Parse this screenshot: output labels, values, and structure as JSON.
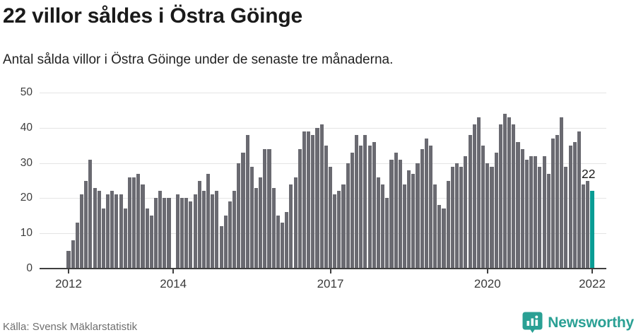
{
  "header": {
    "title": "22 villor såldes i Östra Göinge",
    "subtitle": "Antal sålda villor i Östra Göinge under de senaste tre månaderna."
  },
  "footer": {
    "source": "Källa: Svensk Mäklarstatistik",
    "brand": "Newsworthy",
    "brand_icon": "newsworthy-pin-barchart-icon"
  },
  "colors": {
    "bar": "#6a6a71",
    "highlight": "#089c94",
    "grid": "#e4e4e4",
    "axis": "#3f3f3f",
    "title_text": "#1a1a1a",
    "muted_text": "#6f6f6f",
    "brand_teal": "#2aa094"
  },
  "chart_data": {
    "type": "bar",
    "title": "22 villor såldes i Östra Göinge",
    "subtitle": "Antal sålda villor i Östra Göinge under de senaste tre månaderna.",
    "series_name": "Antal sålda villor (rullande tre månader)",
    "start_month": "2012-01",
    "end_month": "2022-01",
    "frequency": "monthly",
    "values": [
      5,
      8,
      13,
      21,
      25,
      31,
      23,
      22,
      17,
      21,
      22,
      21,
      21,
      17,
      26,
      26,
      27,
      24,
      17,
      15,
      20,
      22,
      20,
      20,
      0,
      21,
      20,
      20,
      19,
      21,
      25,
      22,
      27,
      21,
      22,
      12,
      15,
      19,
      22,
      30,
      33,
      38,
      29,
      23,
      26,
      34,
      34,
      23,
      15,
      13,
      16,
      24,
      26,
      34,
      39,
      39,
      38,
      40,
      41,
      35,
      29,
      21,
      22,
      24,
      30,
      33,
      38,
      35,
      38,
      35,
      36,
      26,
      24,
      20,
      31,
      33,
      31,
      24,
      28,
      27,
      30,
      34,
      37,
      35,
      24,
      18,
      17,
      25,
      29,
      30,
      29,
      32,
      38,
      41,
      43,
      35,
      30,
      29,
      33,
      41,
      44,
      43,
      41,
      36,
      34,
      31,
      32,
      32,
      29,
      32,
      27,
      37,
      38,
      43,
      29,
      35,
      36,
      39,
      24,
      25,
      22
    ],
    "highlight_index": 120,
    "highlight_label": "22",
    "ylim": [
      0,
      50
    ],
    "y_ticks": [
      0,
      10,
      20,
      30,
      40,
      50
    ],
    "x_ticks": [
      {
        "label": "2012",
        "month": 0
      },
      {
        "label": "2014",
        "month": 24
      },
      {
        "label": "2017",
        "month": 60
      },
      {
        "label": "2020",
        "month": 96
      },
      {
        "label": "2022",
        "month": 120
      }
    ],
    "grid": true,
    "legend": "none"
  }
}
